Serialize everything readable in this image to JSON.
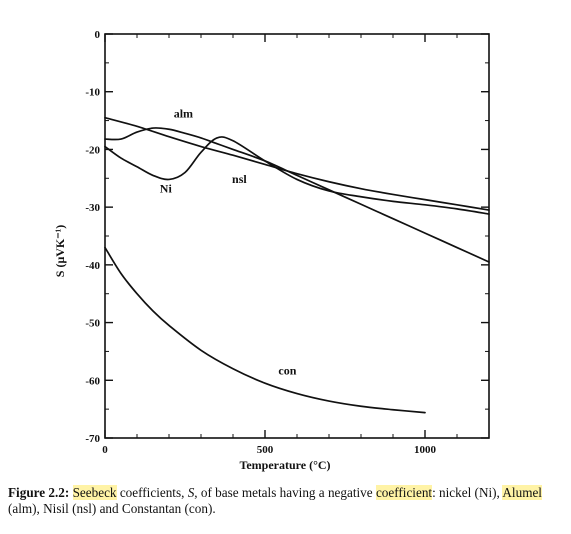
{
  "chart_data": {
    "type": "line",
    "xlabel": "Temperature (°C)",
    "ylabel": "S  (μVK⁻¹)",
    "xlim": [
      0,
      1200
    ],
    "ylim": [
      -70,
      0
    ],
    "x_ticks": [
      0,
      500,
      1000
    ],
    "y_ticks": [
      0,
      -10,
      -20,
      -30,
      -40,
      -50,
      -60,
      -70
    ],
    "grid": false,
    "series": [
      {
        "name": "alm",
        "x": [
          0,
          50,
          100,
          150,
          200,
          250,
          300,
          350,
          400,
          500,
          600,
          700,
          800,
          900,
          1000,
          1100,
          1200
        ],
        "y": [
          -18.2,
          -18.2,
          -17.0,
          -16.3,
          -16.5,
          -17.2,
          -18.0,
          -19.0,
          -20.0,
          -22.0,
          -24.5,
          -27.0,
          -29.5,
          -32.0,
          -34.5,
          -37.0,
          -39.5
        ]
      },
      {
        "name": "Ni",
        "x": [
          0,
          50,
          100,
          150,
          200,
          250,
          300,
          350,
          400,
          500,
          600,
          700,
          800,
          900,
          1000,
          1100,
          1200
        ],
        "y": [
          -19.5,
          -21.5,
          -23.0,
          -24.5,
          -25.2,
          -24.0,
          -20.5,
          -18.0,
          -18.5,
          -22.0,
          -25.2,
          -27.2,
          -28.2,
          -29.0,
          -29.6,
          -30.3,
          -31.2
        ]
      },
      {
        "name": "nsl",
        "x": [
          0,
          100,
          200,
          300,
          400,
          500,
          600,
          700,
          800,
          900,
          1000,
          1100,
          1200
        ],
        "y": [
          -14.5,
          -16.0,
          -17.8,
          -19.5,
          -21.0,
          -22.6,
          -24.2,
          -25.6,
          -26.8,
          -27.8,
          -28.7,
          -29.6,
          -30.5
        ]
      },
      {
        "name": "con",
        "x": [
          0,
          50,
          100,
          150,
          200,
          300,
          400,
          500,
          600,
          700,
          800,
          900,
          1000
        ],
        "y": [
          -37.0,
          -41.5,
          -45.0,
          -48.0,
          -50.5,
          -54.8,
          -58.0,
          -60.5,
          -62.3,
          -63.6,
          -64.5,
          -65.1,
          -65.6
        ]
      }
    ],
    "annotations": [
      {
        "text": "alm",
        "x": 245,
        "y": -14.5
      },
      {
        "text": "Ni",
        "x": 190,
        "y": -27.5
      },
      {
        "text": "nsl",
        "x": 420,
        "y": -25.8
      },
      {
        "text": "con",
        "x": 570,
        "y": -59.0
      }
    ]
  },
  "caption": {
    "figure_label": "Figure 2.2:",
    "part1": " ",
    "hl1": "Seebeck",
    "part2": " coefficients, ",
    "sym": "S",
    "part3": ", of base metals having a negative ",
    "hl2": "coefficient",
    "part4": ": nickel (Ni), ",
    "hl3": "Alumel",
    "part5": " (alm), Nisil (nsl) and Constantan (con)."
  }
}
